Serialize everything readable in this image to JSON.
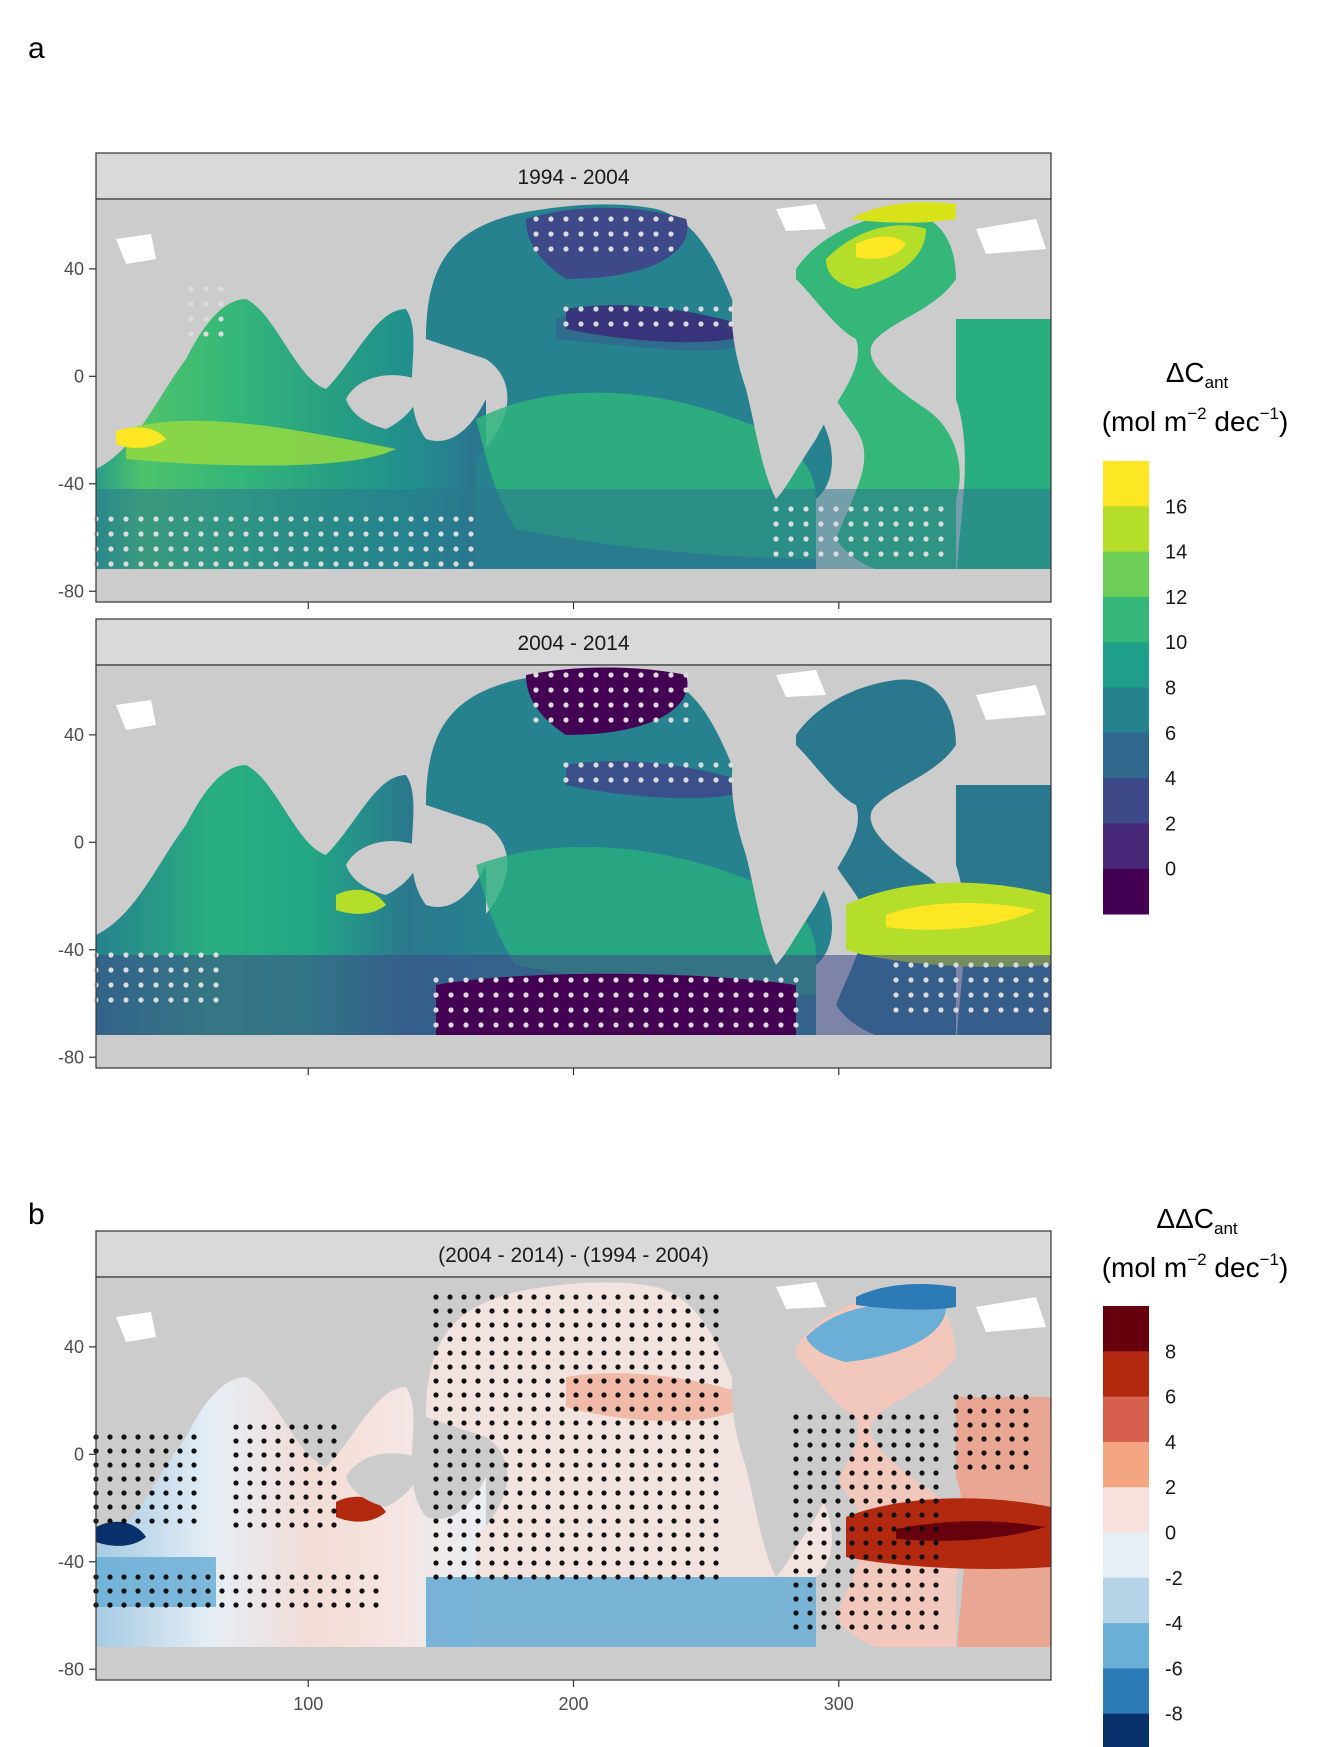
{
  "chart_data": [
    {
      "type": "heatmap",
      "panel_label": "a",
      "facets": [
        "1994 - 2004",
        "2004 - 2014"
      ],
      "xlabel": "",
      "ylabel": "",
      "x_ticks": [
        100,
        200,
        300
      ],
      "y_ticks": [
        40,
        0,
        -40,
        -80
      ],
      "xlim": [
        20,
        380
      ],
      "ylim": [
        -84,
        66
      ],
      "grid": false,
      "legend": {
        "position": "right",
        "title_main": "ΔC",
        "title_sub": "ant",
        "unit_open": "(mol m",
        "unit_exp1": "−2",
        "unit_mid": " dec",
        "unit_exp2": "−1",
        "unit_close": ")",
        "labels": [
          "16",
          "14",
          "12",
          "10",
          "8",
          "6",
          "4",
          "2",
          "0"
        ],
        "colors": [
          "#fde725",
          "#b5de2b",
          "#6ece58",
          "#35b779",
          "#1f9e89",
          "#26828e",
          "#31688e",
          "#3e4989",
          "#482878",
          "#440154"
        ]
      }
    },
    {
      "type": "heatmap",
      "panel_label": "b",
      "facets": [
        "(2004 - 2014) - (1994 - 2004)"
      ],
      "xlabel": "",
      "ylabel": "",
      "x_ticks": [
        100,
        200,
        300
      ],
      "x_tick_labels": [
        "100",
        "200",
        "300"
      ],
      "y_ticks": [
        40,
        0,
        -40,
        -80
      ],
      "xlim": [
        20,
        380
      ],
      "ylim": [
        -84,
        66
      ],
      "grid": false,
      "legend": {
        "position": "right",
        "title_main": "ΔΔC",
        "title_sub": "ant",
        "unit_open": "(mol m",
        "unit_exp1": "−2",
        "unit_mid": " dec",
        "unit_exp2": "−1",
        "unit_close": ")",
        "labels": [
          "8",
          "6",
          "4",
          "2",
          "0",
          "-2",
          "-4",
          "-6",
          "-8"
        ],
        "colors": [
          "#67000d",
          "#b2290f",
          "#d6604d",
          "#f4a582",
          "#f7e1dc",
          "#e7eef5",
          "#b5d2e7",
          "#6baed6",
          "#2c7bb6",
          "#08306b"
        ]
      }
    }
  ],
  "y_tick_labels": [
    "40",
    "0",
    "-40",
    "-80"
  ],
  "colors": {
    "land": "#cccccc",
    "strip": "#d9d9d9",
    "ice": "#ffffff"
  }
}
